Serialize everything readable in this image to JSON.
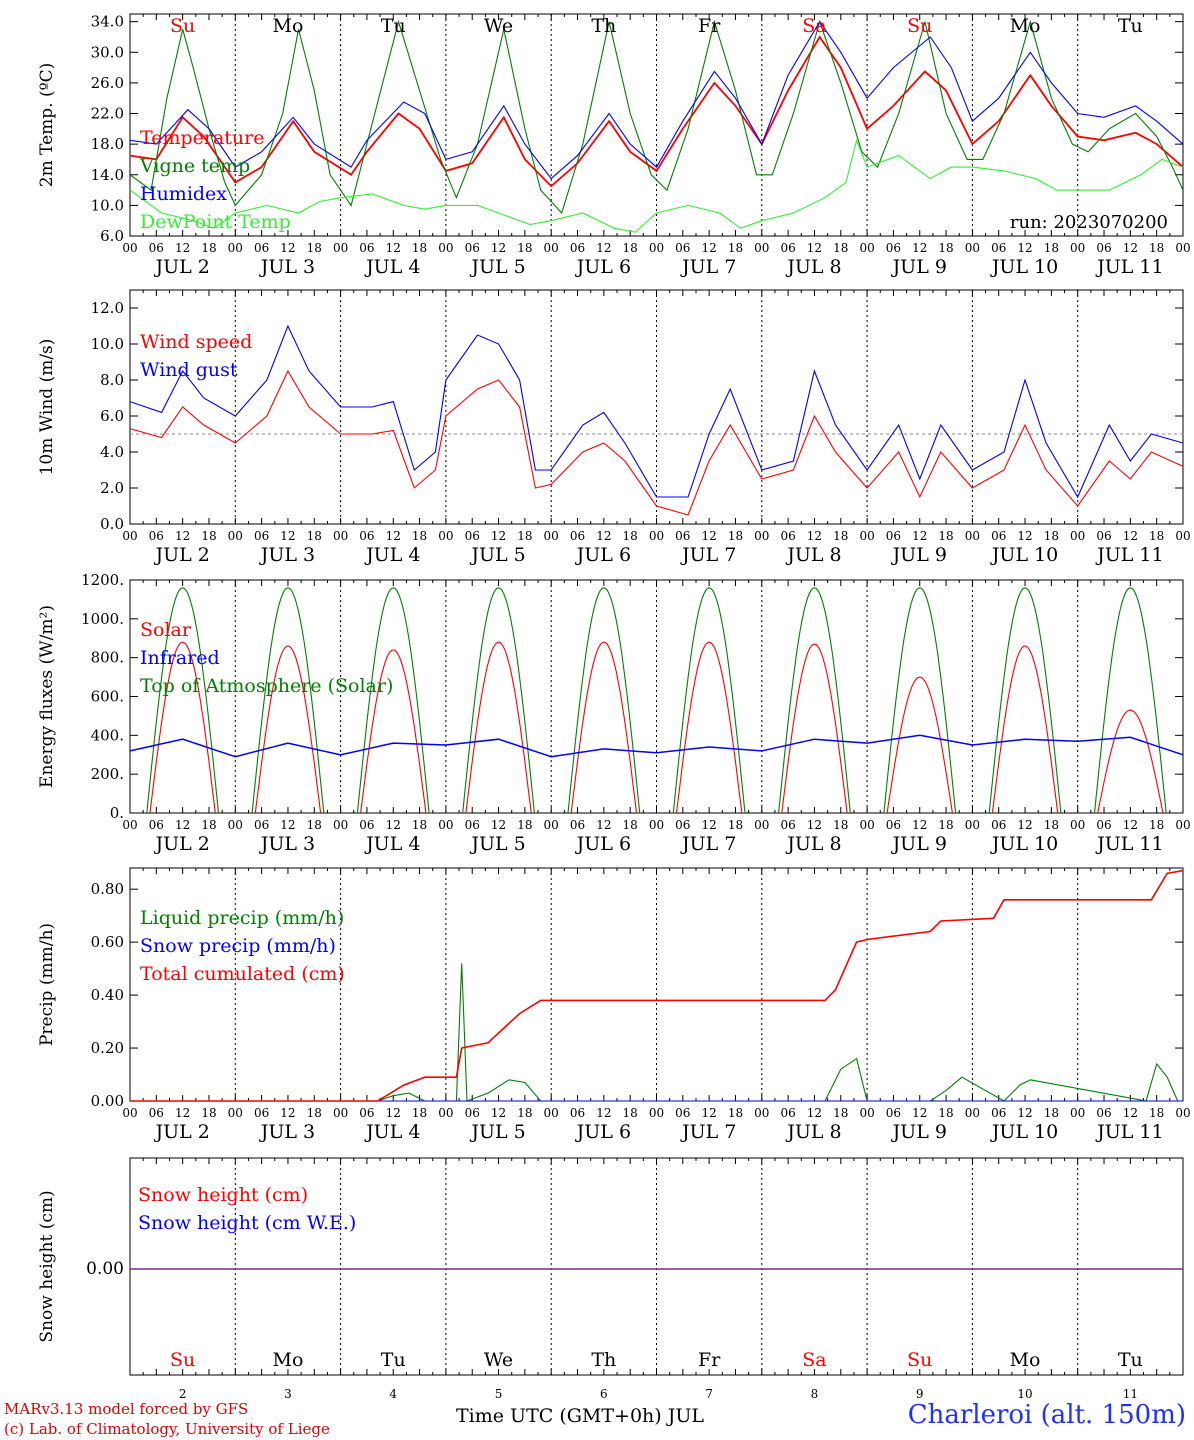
{
  "footer": {
    "model": "MARv3.13 model forced by GFS",
    "credit": "(c) Lab. of Climatology, University of Liege",
    "station": "Charleroi (alt. 150m)",
    "xtitle": "Time UTC (GMT+0h) JUL"
  },
  "colors": {
    "red": "#ff0000",
    "green": "#008000",
    "blue": "#0000ff",
    "lightgreen": "#33ee33",
    "grey": "#888888"
  },
  "days": {
    "names": [
      "Su",
      "Mo",
      "Tu",
      "We",
      "Th",
      "Fr",
      "Sa",
      "Su",
      "Mo",
      "Tu"
    ],
    "weekend": [
      true,
      false,
      false,
      false,
      false,
      false,
      true,
      true,
      false,
      false
    ],
    "dates": [
      "JUL  2",
      "JUL  3",
      "JUL  4",
      "JUL  5",
      "JUL  6",
      "JUL  7",
      "JUL  8",
      "JUL  9",
      "JUL 10",
      "JUL 11"
    ],
    "numbers": [
      "2",
      "3",
      "4",
      "5",
      "6",
      "7",
      "8",
      "9",
      "10",
      "11"
    ],
    "hour_ticks": [
      "00",
      "06",
      "12",
      "18"
    ]
  },
  "chart_data": [
    {
      "type": "line",
      "ylabel": "2m Temp. (ºC)",
      "ylim": [
        6,
        35
      ],
      "yticks": [
        "6.0",
        "10.0",
        "14.0",
        "18.0",
        "22.0",
        "26.0",
        "30.0",
        "34.0"
      ],
      "annotation": "run: 2023070200",
      "x_unit": "day of July (fractional, UTC)",
      "series": [
        {
          "name": "Temperature",
          "color": "#ff0000",
          "x": [
            2.0,
            2.25,
            2.5,
            2.7,
            3.0,
            3.25,
            3.55,
            3.75,
            4.1,
            4.25,
            4.55,
            4.75,
            5.0,
            5.25,
            5.55,
            5.75,
            6.0,
            6.25,
            6.55,
            6.75,
            7.0,
            7.25,
            7.55,
            7.75,
            8.0,
            8.25,
            8.55,
            8.75,
            9.0,
            9.25,
            9.55,
            9.75,
            10.0,
            10.25,
            10.55,
            10.75,
            11.0,
            11.25,
            11.55,
            11.75,
            12.0
          ],
          "y": [
            16.5,
            16.0,
            21.5,
            19.0,
            13.0,
            15.0,
            21.0,
            17.0,
            14.0,
            17.0,
            22.0,
            20.0,
            14.5,
            15.5,
            21.5,
            16.0,
            12.5,
            15.5,
            21.0,
            17.0,
            14.5,
            20.0,
            26.0,
            23.0,
            18.0,
            25.0,
            32.0,
            28.0,
            20.0,
            23.0,
            27.5,
            25.0,
            18.0,
            21.0,
            27.0,
            23.0,
            19.0,
            18.5,
            19.5,
            18.0,
            15.0
          ]
        },
        {
          "name": "Vigne temp",
          "color": "#008000",
          "x": [
            2.0,
            2.2,
            2.35,
            2.5,
            2.6,
            2.75,
            2.9,
            3.0,
            3.25,
            3.45,
            3.6,
            3.75,
            3.9,
            4.1,
            4.25,
            4.55,
            4.75,
            4.95,
            5.1,
            5.3,
            5.55,
            5.75,
            5.9,
            6.1,
            6.3,
            6.55,
            6.75,
            6.95,
            7.1,
            7.3,
            7.55,
            7.75,
            7.95,
            8.1,
            8.3,
            8.55,
            8.75,
            8.95,
            9.1,
            9.3,
            9.55,
            9.75,
            9.95,
            10.1,
            10.3,
            10.55,
            10.75,
            10.95,
            11.1,
            11.3,
            11.55,
            11.75,
            11.9,
            12.0
          ],
          "y": [
            14.0,
            12.0,
            24.0,
            33.0,
            28.0,
            20.0,
            13.0,
            10.0,
            14.0,
            22.0,
            33.0,
            25.0,
            14.0,
            10.0,
            18.0,
            34.0,
            25.0,
            16.0,
            11.0,
            18.0,
            33.0,
            20.0,
            12.0,
            9.0,
            18.0,
            34.0,
            22.0,
            14.0,
            12.0,
            20.0,
            34.0,
            25.0,
            14.0,
            14.0,
            22.0,
            34.0,
            26.0,
            17.0,
            15.0,
            22.0,
            34.0,
            22.0,
            16.0,
            16.0,
            22.0,
            34.0,
            24.0,
            18.0,
            17.0,
            20.0,
            22.0,
            19.0,
            15.0,
            12.0
          ]
        },
        {
          "name": "Humidex",
          "color": "#0000ff",
          "x": [
            2.0,
            2.25,
            2.55,
            2.75,
            3.0,
            3.25,
            3.55,
            3.75,
            4.1,
            4.25,
            4.6,
            4.8,
            5.0,
            5.25,
            5.55,
            5.75,
            6.0,
            6.25,
            6.55,
            6.75,
            7.0,
            7.25,
            7.55,
            7.75,
            8.0,
            8.25,
            8.55,
            8.75,
            9.0,
            9.25,
            9.6,
            9.8,
            10.0,
            10.25,
            10.55,
            10.75,
            11.0,
            11.25,
            11.55,
            11.75,
            12.0
          ],
          "y": [
            18.5,
            18.0,
            22.5,
            20.0,
            15.0,
            17.0,
            21.5,
            18.0,
            15.0,
            18.5,
            23.5,
            22.0,
            16.0,
            17.0,
            23.0,
            18.0,
            13.5,
            16.5,
            22.0,
            18.0,
            15.0,
            21.0,
            27.5,
            24.0,
            18.0,
            27.0,
            34.0,
            30.0,
            24.0,
            28.0,
            32.0,
            28.0,
            21.0,
            24.0,
            30.0,
            26.0,
            22.0,
            21.5,
            23.0,
            21.0,
            18.0
          ]
        },
        {
          "name": "DewPoint Temp",
          "color": "#33ee33",
          "x": [
            2.0,
            2.3,
            2.6,
            2.8,
            3.0,
            3.3,
            3.6,
            3.8,
            4.0,
            4.3,
            4.6,
            4.8,
            5.0,
            5.3,
            5.6,
            5.8,
            6.0,
            6.3,
            6.6,
            6.8,
            7.0,
            7.3,
            7.6,
            7.8,
            8.0,
            8.3,
            8.6,
            8.8,
            8.9,
            9.0,
            9.3,
            9.6,
            9.8,
            10.0,
            10.3,
            10.6,
            10.8,
            11.0,
            11.3,
            11.6,
            11.8,
            12.0
          ],
          "y": [
            12.0,
            9.0,
            8.0,
            7.0,
            9.0,
            10.0,
            9.0,
            10.5,
            11.0,
            11.5,
            10.0,
            9.5,
            10.0,
            10.0,
            8.5,
            7.5,
            8.0,
            9.0,
            7.0,
            6.5,
            9.0,
            10.0,
            9.0,
            7.0,
            8.0,
            9.0,
            11.0,
            13.0,
            18.5,
            15.0,
            16.5,
            13.5,
            15.0,
            15.0,
            14.5,
            13.5,
            12.0,
            12.0,
            12.0,
            14.0,
            16.0,
            15.0
          ]
        }
      ]
    },
    {
      "type": "line",
      "ylabel": "10m Wind (m/s)",
      "ylim": [
        0,
        13
      ],
      "yticks": [
        "0.0",
        "2.0",
        "4.0",
        "6.0",
        "8.0",
        "10.0",
        "12.0"
      ],
      "reference_line": 5,
      "series": [
        {
          "name": "Wind speed",
          "color": "#ff0000",
          "x": [
            2.0,
            2.3,
            2.5,
            2.7,
            3.0,
            3.3,
            3.5,
            3.7,
            4.0,
            4.3,
            4.5,
            4.7,
            4.9,
            5.0,
            5.3,
            5.5,
            5.7,
            5.85,
            6.0,
            6.3,
            6.5,
            6.7,
            7.0,
            7.3,
            7.5,
            7.7,
            8.0,
            8.3,
            8.5,
            8.7,
            9.0,
            9.3,
            9.5,
            9.7,
            10.0,
            10.3,
            10.5,
            10.7,
            11.0,
            11.3,
            11.5,
            11.7,
            12.0
          ],
          "y": [
            5.3,
            4.8,
            6.5,
            5.5,
            4.5,
            6.0,
            8.5,
            6.5,
            5.0,
            5.0,
            5.2,
            2.0,
            3.0,
            6.0,
            7.5,
            8.0,
            6.5,
            2.0,
            2.2,
            4.0,
            4.5,
            3.5,
            1.0,
            0.5,
            3.5,
            5.5,
            2.5,
            3.0,
            6.0,
            4.0,
            2.0,
            4.0,
            1.5,
            4.0,
            2.0,
            3.0,
            5.5,
            3.0,
            1.0,
            3.5,
            2.5,
            4.0,
            3.2
          ]
        },
        {
          "name": "Wind gust",
          "color": "#0000ff",
          "x": [
            2.0,
            2.3,
            2.5,
            2.7,
            3.0,
            3.3,
            3.5,
            3.7,
            4.0,
            4.3,
            4.5,
            4.7,
            4.9,
            5.0,
            5.3,
            5.5,
            5.7,
            5.85,
            6.0,
            6.3,
            6.5,
            6.7,
            7.0,
            7.3,
            7.5,
            7.7,
            8.0,
            8.3,
            8.5,
            8.7,
            9.0,
            9.3,
            9.5,
            9.7,
            10.0,
            10.3,
            10.5,
            10.7,
            11.0,
            11.3,
            11.5,
            11.7,
            12.0
          ],
          "y": [
            6.8,
            6.2,
            8.5,
            7.0,
            6.0,
            8.0,
            11.0,
            8.5,
            6.5,
            6.5,
            6.8,
            3.0,
            4.0,
            8.0,
            10.5,
            10.0,
            8.0,
            3.0,
            3.0,
            5.5,
            6.2,
            4.5,
            1.5,
            1.5,
            5.0,
            7.5,
            3.0,
            3.5,
            8.5,
            5.5,
            3.0,
            5.5,
            2.5,
            5.5,
            3.0,
            4.0,
            8.0,
            4.5,
            1.5,
            5.5,
            3.5,
            5.0,
            4.5
          ]
        }
      ]
    },
    {
      "type": "line",
      "ylabel": "Energy fluxes (W/m²)",
      "ylim": [
        0,
        1200
      ],
      "yticks": [
        "0.",
        "200.",
        "400.",
        "600.",
        "800.",
        "1000.",
        "1200."
      ],
      "series": [
        {
          "name": "Solar",
          "color": "#ff0000",
          "daily_peak": [
            880,
            860,
            840,
            880,
            880,
            880,
            870,
            700,
            860,
            530
          ]
        },
        {
          "name": "Infrared",
          "color": "#0000ff",
          "x": [
            2.0,
            2.5,
            3.0,
            3.5,
            4.0,
            4.5,
            5.0,
            5.5,
            6.0,
            6.5,
            7.0,
            7.5,
            8.0,
            8.5,
            9.0,
            9.5,
            10.0,
            10.5,
            11.0,
            11.5,
            12.0
          ],
          "y": [
            320,
            380,
            290,
            360,
            300,
            360,
            350,
            380,
            290,
            330,
            310,
            340,
            320,
            380,
            360,
            400,
            350,
            380,
            370,
            390,
            300
          ]
        },
        {
          "name": "Top of Atmosphere (Solar)",
          "color": "#008000",
          "daily_peak": [
            1160,
            1160,
            1160,
            1160,
            1160,
            1160,
            1160,
            1160,
            1160,
            1160
          ]
        }
      ]
    },
    {
      "type": "line",
      "ylabel": "Precip (mm/h)",
      "ylim": [
        0,
        0.88
      ],
      "yticks": [
        "0.00",
        "0.20",
        "0.40",
        "0.60",
        "0.80"
      ],
      "series": [
        {
          "name": "Liquid precip (mm/h)",
          "color": "#008000",
          "x": [
            4.35,
            4.5,
            4.65,
            4.8,
            5.1,
            5.15,
            5.2,
            5.4,
            5.6,
            5.75,
            5.9,
            8.6,
            8.75,
            8.9,
            9.0,
            9.6,
            9.75,
            9.9,
            10.3,
            10.45,
            10.55,
            11.65,
            11.75,
            11.85,
            11.95
          ],
          "y": [
            0,
            0.02,
            0.03,
            0,
            0,
            0.52,
            0,
            0.03,
            0.08,
            0.07,
            0,
            0,
            0.12,
            0.16,
            0,
            0,
            0.04,
            0.09,
            0,
            0.06,
            0.08,
            0,
            0.14,
            0.09,
            0
          ]
        },
        {
          "name": "Snow precip (mm/h)",
          "color": "#0000ff",
          "x": [
            2.0,
            12.0
          ],
          "y": [
            0,
            0
          ]
        },
        {
          "name": "Total cumulated (cm)",
          "color": "#ff0000",
          "x": [
            2.0,
            4.35,
            4.6,
            4.8,
            5.1,
            5.15,
            5.4,
            5.7,
            5.9,
            6.0,
            8.6,
            8.7,
            8.9,
            9.0,
            9.6,
            9.7,
            10.2,
            10.3,
            11.7,
            11.85,
            12.0
          ],
          "y": [
            0,
            0,
            0.06,
            0.09,
            0.09,
            0.2,
            0.22,
            0.33,
            0.38,
            0.38,
            0.38,
            0.42,
            0.6,
            0.61,
            0.64,
            0.68,
            0.69,
            0.76,
            0.76,
            0.86,
            0.87
          ]
        }
      ]
    },
    {
      "type": "line",
      "ylabel": "Snow height (cm)",
      "yticks": [
        "0.00"
      ],
      "series": [
        {
          "name": "Snow height (cm)",
          "color": "#ff0000",
          "x": [
            2.0,
            12.0
          ],
          "y": [
            0,
            0
          ]
        },
        {
          "name": "Snow height (cm W.E.)",
          "color": "#0000ff",
          "x": [
            2.0,
            12.0
          ],
          "y": [
            0,
            0
          ]
        }
      ]
    }
  ]
}
